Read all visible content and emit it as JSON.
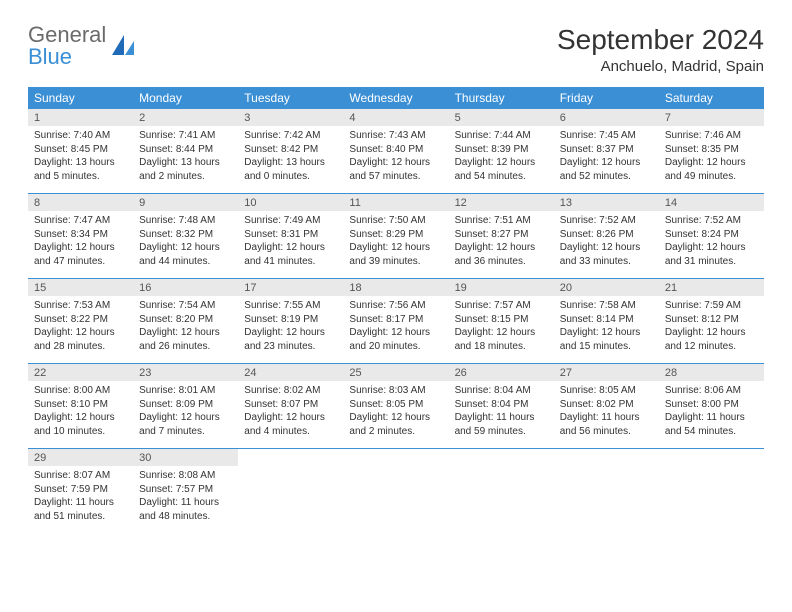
{
  "logo": {
    "word1": "General",
    "word2": "Blue"
  },
  "title": "September 2024",
  "location": "Anchuelo, Madrid, Spain",
  "colors": {
    "header_bg": "#3b8fd4",
    "header_text": "#ffffff",
    "daynum_bg": "#e9e9e9",
    "text": "#333333",
    "rule": "#3b8fd4"
  },
  "fonts": {
    "title_pt": 28,
    "location_pt": 15,
    "dow_pt": 12,
    "daynum_pt": 11,
    "body_pt": 10
  },
  "dow": [
    "Sunday",
    "Monday",
    "Tuesday",
    "Wednesday",
    "Thursday",
    "Friday",
    "Saturday"
  ],
  "weeks": [
    [
      {
        "n": "1",
        "sr": "Sunrise: 7:40 AM",
        "ss": "Sunset: 8:45 PM",
        "dl": "Daylight: 13 hours and 5 minutes."
      },
      {
        "n": "2",
        "sr": "Sunrise: 7:41 AM",
        "ss": "Sunset: 8:44 PM",
        "dl": "Daylight: 13 hours and 2 minutes."
      },
      {
        "n": "3",
        "sr": "Sunrise: 7:42 AM",
        "ss": "Sunset: 8:42 PM",
        "dl": "Daylight: 13 hours and 0 minutes."
      },
      {
        "n": "4",
        "sr": "Sunrise: 7:43 AM",
        "ss": "Sunset: 8:40 PM",
        "dl": "Daylight: 12 hours and 57 minutes."
      },
      {
        "n": "5",
        "sr": "Sunrise: 7:44 AM",
        "ss": "Sunset: 8:39 PM",
        "dl": "Daylight: 12 hours and 54 minutes."
      },
      {
        "n": "6",
        "sr": "Sunrise: 7:45 AM",
        "ss": "Sunset: 8:37 PM",
        "dl": "Daylight: 12 hours and 52 minutes."
      },
      {
        "n": "7",
        "sr": "Sunrise: 7:46 AM",
        "ss": "Sunset: 8:35 PM",
        "dl": "Daylight: 12 hours and 49 minutes."
      }
    ],
    [
      {
        "n": "8",
        "sr": "Sunrise: 7:47 AM",
        "ss": "Sunset: 8:34 PM",
        "dl": "Daylight: 12 hours and 47 minutes."
      },
      {
        "n": "9",
        "sr": "Sunrise: 7:48 AM",
        "ss": "Sunset: 8:32 PM",
        "dl": "Daylight: 12 hours and 44 minutes."
      },
      {
        "n": "10",
        "sr": "Sunrise: 7:49 AM",
        "ss": "Sunset: 8:31 PM",
        "dl": "Daylight: 12 hours and 41 minutes."
      },
      {
        "n": "11",
        "sr": "Sunrise: 7:50 AM",
        "ss": "Sunset: 8:29 PM",
        "dl": "Daylight: 12 hours and 39 minutes."
      },
      {
        "n": "12",
        "sr": "Sunrise: 7:51 AM",
        "ss": "Sunset: 8:27 PM",
        "dl": "Daylight: 12 hours and 36 minutes."
      },
      {
        "n": "13",
        "sr": "Sunrise: 7:52 AM",
        "ss": "Sunset: 8:26 PM",
        "dl": "Daylight: 12 hours and 33 minutes."
      },
      {
        "n": "14",
        "sr": "Sunrise: 7:52 AM",
        "ss": "Sunset: 8:24 PM",
        "dl": "Daylight: 12 hours and 31 minutes."
      }
    ],
    [
      {
        "n": "15",
        "sr": "Sunrise: 7:53 AM",
        "ss": "Sunset: 8:22 PM",
        "dl": "Daylight: 12 hours and 28 minutes."
      },
      {
        "n": "16",
        "sr": "Sunrise: 7:54 AM",
        "ss": "Sunset: 8:20 PM",
        "dl": "Daylight: 12 hours and 26 minutes."
      },
      {
        "n": "17",
        "sr": "Sunrise: 7:55 AM",
        "ss": "Sunset: 8:19 PM",
        "dl": "Daylight: 12 hours and 23 minutes."
      },
      {
        "n": "18",
        "sr": "Sunrise: 7:56 AM",
        "ss": "Sunset: 8:17 PM",
        "dl": "Daylight: 12 hours and 20 minutes."
      },
      {
        "n": "19",
        "sr": "Sunrise: 7:57 AM",
        "ss": "Sunset: 8:15 PM",
        "dl": "Daylight: 12 hours and 18 minutes."
      },
      {
        "n": "20",
        "sr": "Sunrise: 7:58 AM",
        "ss": "Sunset: 8:14 PM",
        "dl": "Daylight: 12 hours and 15 minutes."
      },
      {
        "n": "21",
        "sr": "Sunrise: 7:59 AM",
        "ss": "Sunset: 8:12 PM",
        "dl": "Daylight: 12 hours and 12 minutes."
      }
    ],
    [
      {
        "n": "22",
        "sr": "Sunrise: 8:00 AM",
        "ss": "Sunset: 8:10 PM",
        "dl": "Daylight: 12 hours and 10 minutes."
      },
      {
        "n": "23",
        "sr": "Sunrise: 8:01 AM",
        "ss": "Sunset: 8:09 PM",
        "dl": "Daylight: 12 hours and 7 minutes."
      },
      {
        "n": "24",
        "sr": "Sunrise: 8:02 AM",
        "ss": "Sunset: 8:07 PM",
        "dl": "Daylight: 12 hours and 4 minutes."
      },
      {
        "n": "25",
        "sr": "Sunrise: 8:03 AM",
        "ss": "Sunset: 8:05 PM",
        "dl": "Daylight: 12 hours and 2 minutes."
      },
      {
        "n": "26",
        "sr": "Sunrise: 8:04 AM",
        "ss": "Sunset: 8:04 PM",
        "dl": "Daylight: 11 hours and 59 minutes."
      },
      {
        "n": "27",
        "sr": "Sunrise: 8:05 AM",
        "ss": "Sunset: 8:02 PM",
        "dl": "Daylight: 11 hours and 56 minutes."
      },
      {
        "n": "28",
        "sr": "Sunrise: 8:06 AM",
        "ss": "Sunset: 8:00 PM",
        "dl": "Daylight: 11 hours and 54 minutes."
      }
    ],
    [
      {
        "n": "29",
        "sr": "Sunrise: 8:07 AM",
        "ss": "Sunset: 7:59 PM",
        "dl": "Daylight: 11 hours and 51 minutes."
      },
      {
        "n": "30",
        "sr": "Sunrise: 8:08 AM",
        "ss": "Sunset: 7:57 PM",
        "dl": "Daylight: 11 hours and 48 minutes."
      },
      null,
      null,
      null,
      null,
      null
    ]
  ]
}
